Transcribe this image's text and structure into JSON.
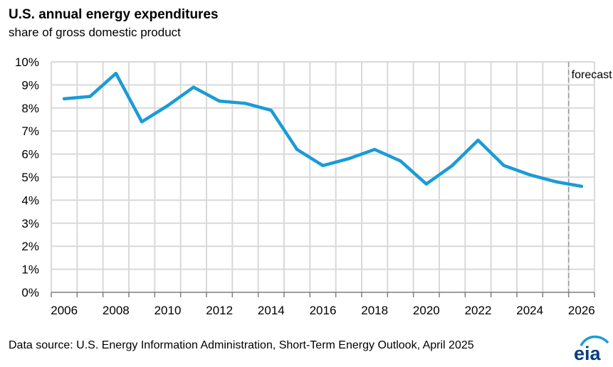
{
  "header": {
    "title": "U.S. annual energy expenditures",
    "subtitle": "share of gross domestic product"
  },
  "footer": {
    "source": "Data source: U.S. Energy Information Administration,  Short-Term Energy Outlook, April 2025",
    "logo_text": "eia"
  },
  "colors": {
    "line": "#1a9bd7",
    "grid": "#d9d9d9",
    "forecast_line": "#999999",
    "logo": "#0a3d7a"
  },
  "chart_data": {
    "type": "line",
    "title": "U.S. annual energy expenditures",
    "subtitle": "share of gross domestic product",
    "xlabel": "",
    "ylabel": "",
    "x_ticks": [
      "2006",
      "2008",
      "2010",
      "2012",
      "2014",
      "2016",
      "2018",
      "2020",
      "2022",
      "2024",
      "2026"
    ],
    "y_ticks": [
      "0%",
      "1%",
      "2%",
      "3%",
      "4%",
      "5%",
      "6%",
      "7%",
      "8%",
      "9%",
      "10%"
    ],
    "ylim": [
      0,
      10
    ],
    "xlim": [
      2005.5,
      2026.5
    ],
    "grid": true,
    "series": [
      {
        "x": [
          2006,
          2007,
          2008,
          2009,
          2010,
          2011,
          2012,
          2013,
          2014,
          2015,
          2016,
          2017,
          2018,
          2019,
          2020,
          2021,
          2022,
          2023,
          2024,
          2025,
          2026
        ],
        "values": [
          8.4,
          8.5,
          9.5,
          7.4,
          8.1,
          8.9,
          8.3,
          8.2,
          7.9,
          6.2,
          5.5,
          5.8,
          6.2,
          5.7,
          4.7,
          5.5,
          6.6,
          5.5,
          5.1,
          4.8,
          4.6
        ]
      }
    ],
    "forecast": {
      "start_x": 2025.5,
      "label": "forecast"
    }
  }
}
